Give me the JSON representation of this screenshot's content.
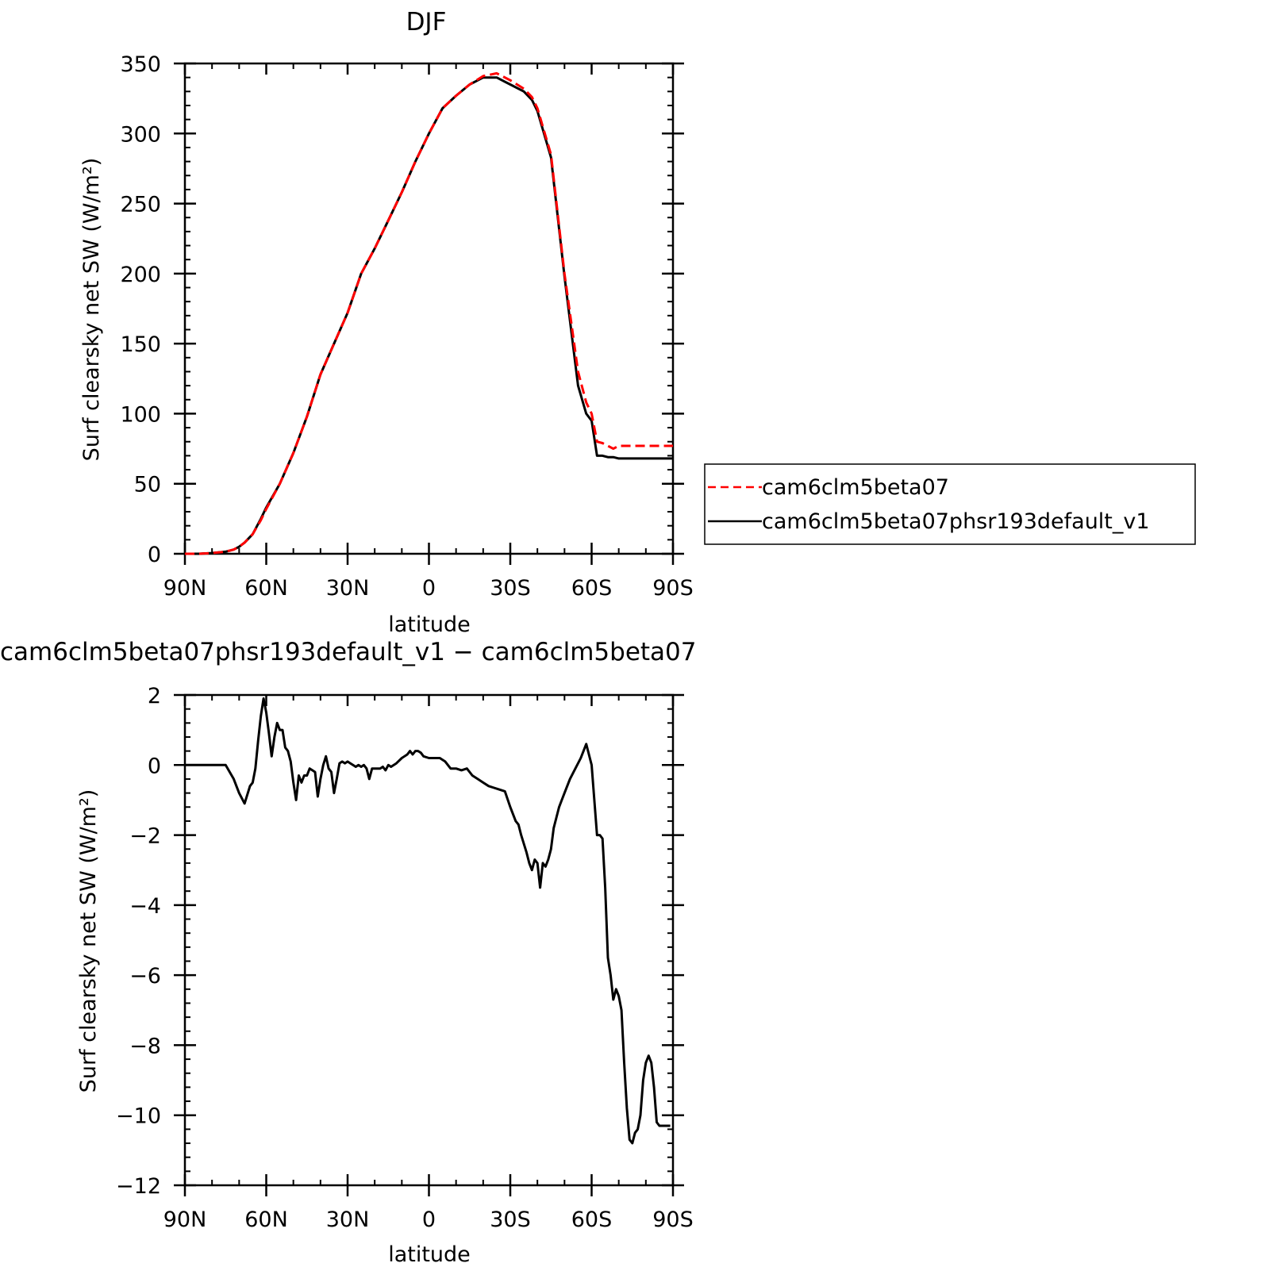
{
  "figure": {
    "panels": [
      {
        "title": "DJF",
        "ylabel": "Surf clearsky net SW (W/m²)",
        "xlabel": "latitude"
      },
      {
        "title": "cam6clm5beta07phsr193default_v1 − cam6clm5beta07",
        "ylabel": "Surf clearsky net SW (W/m²)",
        "xlabel": "latitude"
      }
    ],
    "legend": {
      "items": [
        "cam6clm5beta07",
        "cam6clm5beta07phsr193default_v1"
      ]
    }
  },
  "chart_data": [
    {
      "type": "line",
      "title": "DJF",
      "xlabel": "latitude",
      "ylabel": "Surf clearsky net SW (W/m²)",
      "xlim": [
        90,
        -90
      ],
      "ylim": [
        0,
        350
      ],
      "x_ticks": [
        90,
        60,
        30,
        0,
        -30,
        -60,
        -90
      ],
      "x_tick_labels": [
        "90N",
        "60N",
        "30N",
        "0",
        "30S",
        "60S",
        "90S"
      ],
      "y_ticks": [
        0,
        50,
        100,
        150,
        200,
        250,
        300,
        350
      ],
      "y_tick_labels": [
        "0",
        "50",
        "100",
        "150",
        "200",
        "250",
        "300",
        "350"
      ],
      "grid": false,
      "legend_position": "right",
      "series": [
        {
          "name": "cam6clm5beta07",
          "color": "#ff0000",
          "style": "dashed",
          "x": [
            90,
            85,
            80,
            75,
            72,
            70,
            68,
            65,
            62,
            60,
            55,
            50,
            45,
            40,
            35,
            30,
            25,
            20,
            15,
            10,
            5,
            0,
            -5,
            -10,
            -15,
            -20,
            -25,
            -30,
            -35,
            -38,
            -40,
            -45,
            -50,
            -55,
            -58,
            -60,
            -62,
            -64,
            -66,
            -68,
            -70,
            -72,
            -74,
            -76,
            -78,
            -80,
            -82,
            -84,
            -86,
            -88,
            -90
          ],
          "y": [
            0,
            0,
            0.5,
            1.5,
            3,
            5,
            8,
            14,
            24,
            32,
            50,
            72,
            98,
            128,
            150,
            172,
            200,
            218,
            238,
            258,
            280,
            300,
            318,
            327,
            335,
            341,
            343,
            338,
            332,
            326,
            318,
            285,
            200,
            130,
            108,
            100,
            80,
            79,
            77,
            75,
            77,
            77,
            77,
            77,
            77,
            77,
            77,
            77,
            77,
            77,
            77
          ]
        },
        {
          "name": "cam6clm5beta07phsr193default_v1",
          "color": "#000000",
          "style": "solid",
          "x": [
            90,
            85,
            80,
            75,
            72,
            70,
            68,
            65,
            62,
            60,
            55,
            50,
            45,
            40,
            35,
            30,
            25,
            20,
            15,
            10,
            5,
            0,
            -5,
            -10,
            -15,
            -20,
            -25,
            -30,
            -35,
            -38,
            -40,
            -45,
            -50,
            -55,
            -58,
            -60,
            -62,
            -64,
            -66,
            -68,
            -70,
            -72,
            -74,
            -76,
            -78,
            -80,
            -82,
            -84,
            -86,
            -88,
            -90
          ],
          "y": [
            0,
            0,
            0.5,
            1.5,
            3,
            5,
            8,
            14,
            25,
            33,
            50,
            72,
            98,
            128,
            150,
            172,
            200,
            218,
            238,
            258,
            280,
            300,
            318,
            327,
            335,
            340,
            340,
            335,
            330,
            324,
            316,
            283,
            198,
            120,
            100,
            95,
            70,
            70,
            69,
            69,
            68,
            68,
            68,
            68,
            68,
            68,
            68,
            68,
            68,
            68,
            68
          ]
        }
      ]
    },
    {
      "type": "line",
      "title": "cam6clm5beta07phsr193default_v1 − cam6clm5beta07",
      "xlabel": "latitude",
      "ylabel": "Surf clearsky net SW (W/m²)",
      "xlim": [
        90,
        -90
      ],
      "ylim": [
        -12,
        2
      ],
      "x_ticks": [
        90,
        60,
        30,
        0,
        -30,
        -60,
        -90
      ],
      "x_tick_labels": [
        "90N",
        "60N",
        "30N",
        "0",
        "30S",
        "60S",
        "90S"
      ],
      "y_ticks": [
        -12,
        -10,
        -8,
        -6,
        -4,
        -2,
        0,
        2
      ],
      "y_tick_labels": [
        "−12",
        "−10",
        "−8",
        "−6",
        "−4",
        "−2",
        "0",
        "2"
      ],
      "grid": false,
      "series": [
        {
          "color": "#000000",
          "style": "solid",
          "x": [
            90,
            80,
            75,
            72,
            70,
            68,
            66,
            65,
            64,
            63,
            62,
            61,
            60,
            59,
            58,
            57,
            56,
            55,
            54,
            53,
            52,
            51,
            50,
            49,
            48,
            47,
            46,
            45,
            44,
            43,
            42,
            41,
            40,
            39,
            38,
            37,
            36,
            35,
            34,
            33,
            32,
            31,
            30,
            29,
            28,
            27,
            26,
            25,
            24,
            23,
            22,
            21,
            20,
            18,
            17,
            16,
            15,
            14,
            12,
            10,
            8,
            7,
            6,
            5,
            4,
            3,
            2,
            0,
            -2,
            -4,
            -6,
            -8,
            -10,
            -12,
            -14,
            -16,
            -18,
            -20,
            -22,
            -24,
            -26,
            -28,
            -30,
            -32,
            -33,
            -34,
            -36,
            -37,
            -38,
            -39,
            -40,
            -41,
            -42,
            -43,
            -44,
            -45,
            -46,
            -47,
            -48,
            -49,
            -50,
            -52,
            -54,
            -56,
            -58,
            -60,
            -62,
            -63,
            -64,
            -65,
            -66,
            -67,
            -68,
            -69,
            -70,
            -71,
            -72,
            -73,
            -74,
            -75,
            -76,
            -77,
            -78,
            -79,
            -80,
            -81,
            -82,
            -83,
            -84,
            -85,
            -86,
            -87,
            -88,
            -89
          ],
          "y": [
            0,
            0,
            0,
            -0.4,
            -0.8,
            -1.1,
            -0.6,
            -0.5,
            -0.1,
            0.7,
            1.4,
            1.9,
            1.5,
            0.9,
            0.25,
            0.8,
            1.2,
            1.0,
            1.0,
            0.5,
            0.4,
            0.1,
            -0.5,
            -1.0,
            -0.3,
            -0.5,
            -0.3,
            -0.3,
            -0.1,
            -0.15,
            -0.2,
            -0.9,
            -0.4,
            0.0,
            0.25,
            -0.1,
            -0.2,
            -0.8,
            -0.4,
            0.05,
            0.1,
            0.05,
            0.1,
            0.05,
            0.0,
            -0.05,
            0.0,
            -0.05,
            0.0,
            -0.1,
            -0.4,
            -0.1,
            -0.1,
            -0.1,
            -0.05,
            -0.15,
            0.0,
            -0.05,
            0.05,
            0.2,
            0.3,
            0.4,
            0.3,
            0.4,
            0.4,
            0.35,
            0.25,
            0.2,
            0.2,
            0.2,
            0.1,
            -0.1,
            -0.1,
            -0.15,
            -0.1,
            -0.3,
            -0.4,
            -0.5,
            -0.6,
            -0.65,
            -0.7,
            -0.75,
            -1.2,
            -1.6,
            -1.7,
            -2.0,
            -2.5,
            -2.8,
            -3.0,
            -2.7,
            -2.8,
            -3.5,
            -2.8,
            -2.9,
            -2.7,
            -2.4,
            -1.8,
            -1.5,
            -1.2,
            -1.0,
            -0.8,
            -0.4,
            -0.1,
            0.2,
            0.6,
            0.0,
            -2.0,
            -2.0,
            -2.1,
            -3.5,
            -5.5,
            -6.0,
            -6.7,
            -6.4,
            -6.6,
            -7.0,
            -8.5,
            -9.8,
            -10.7,
            -10.8,
            -10.5,
            -10.4,
            -10.0,
            -9.0,
            -8.5,
            -8.3,
            -8.5,
            -9.2,
            -10.2,
            -10.3,
            -10.3,
            -10.3,
            -10.3,
            -10.3
          ]
        }
      ]
    }
  ]
}
